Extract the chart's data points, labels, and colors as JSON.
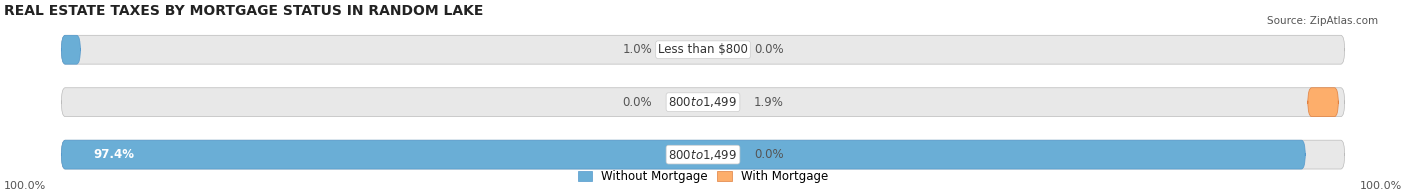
{
  "title": "REAL ESTATE TAXES BY MORTGAGE STATUS IN RANDOM LAKE",
  "source": "Source: ZipAtlas.com",
  "bars": [
    {
      "label": "Less than $800",
      "without_pct": 1.0,
      "with_pct": 0.0,
      "left_label": "1.0%",
      "right_label": "0.0%"
    },
    {
      "label": "$800 to $1,499",
      "without_pct": 0.0,
      "with_pct": 1.9,
      "left_label": "0.0%",
      "right_label": "1.9%"
    },
    {
      "label": "$800 to $1,499",
      "without_pct": 97.4,
      "with_pct": 0.0,
      "left_label": "97.4%",
      "right_label": "0.0%"
    }
  ],
  "legend": [
    "Without Mortgage",
    "With Mortgage"
  ],
  "color_without": "#6aaed6",
  "color_with": "#fdae6b",
  "color_bg_bar": "#e8e8e8",
  "left_axis_label": "100.0%",
  "right_axis_label": "100.0%",
  "title_fontsize": 10,
  "label_fontsize": 8.5,
  "bar_height": 0.55,
  "figsize": [
    14.06,
    1.95
  ],
  "dpi": 100
}
